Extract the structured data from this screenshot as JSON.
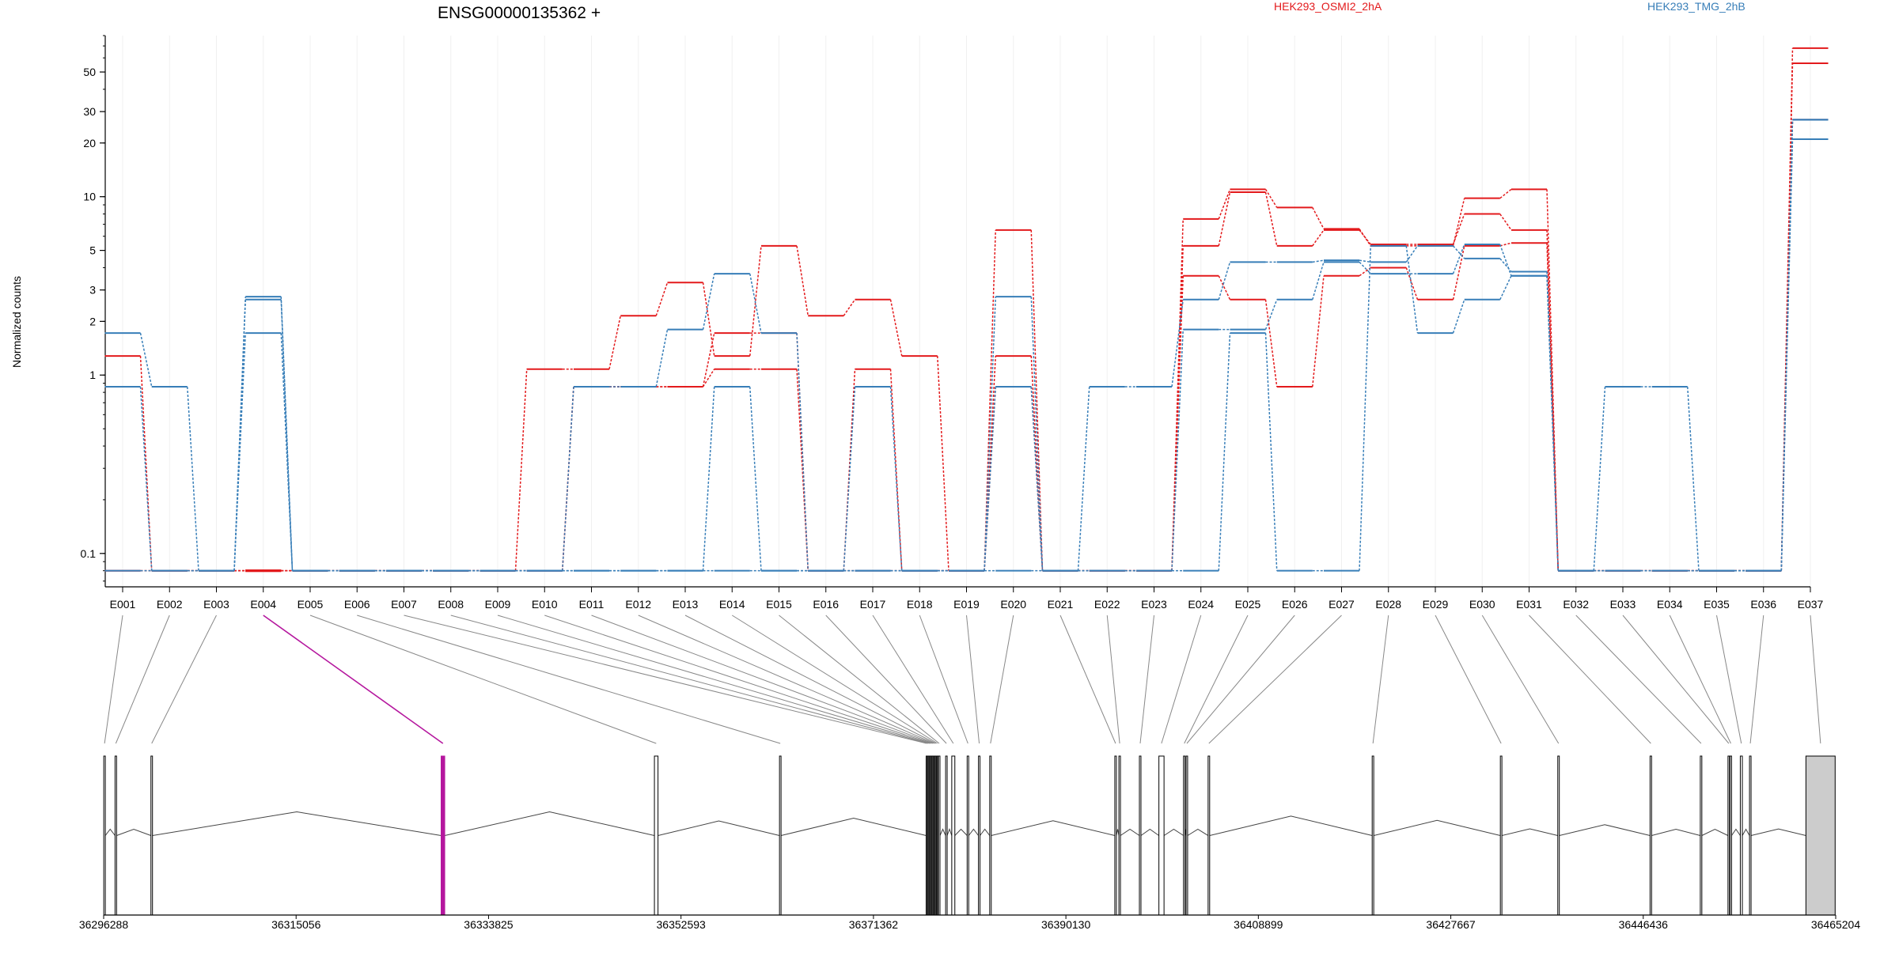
{
  "chart_data": {
    "type": "line",
    "title": "ENSG00000135362 +",
    "ylabel": "Normalized counts",
    "xlabel": "",
    "yscale": "log",
    "ylim": [
      0.065,
      80
    ],
    "yticks": [
      {
        "value": 0.1,
        "label": "0.1"
      },
      {
        "value": 1,
        "label": "1"
      },
      {
        "value": 2,
        "label": "2"
      },
      {
        "value": 3,
        "label": "3"
      },
      {
        "value": 5,
        "label": "5"
      },
      {
        "value": 10,
        "label": "10"
      },
      {
        "value": 20,
        "label": "20"
      },
      {
        "value": 30,
        "label": "30"
      },
      {
        "value": 50,
        "label": "50"
      }
    ],
    "grid": "vertical",
    "legend": [
      {
        "label": "HEK293_OSMI2_2hA",
        "color": "#e31a1c"
      },
      {
        "label": "HEK293_TMG_2hB",
        "color": "#377eb8"
      }
    ],
    "categories": [
      "E001",
      "E002",
      "E003",
      "E004",
      "E005",
      "E006",
      "E007",
      "E008",
      "E009",
      "E010",
      "E011",
      "E012",
      "E013",
      "E014",
      "E015",
      "E016",
      "E017",
      "E018",
      "E019",
      "E020",
      "E021",
      "E022",
      "E023",
      "E024",
      "E025",
      "E026",
      "E027",
      "E028",
      "E029",
      "E030",
      "E031",
      "E032",
      "E033",
      "E034",
      "E035",
      "E036",
      "E037"
    ],
    "highlight_category": "E004",
    "highlight_color": "#b5179e",
    "series": [
      {
        "color": "#e31a1c",
        "values": [
          1.28,
          0.08,
          0.08,
          0.08,
          0.08,
          0.08,
          0.08,
          0.08,
          0.08,
          1.08,
          1.08,
          2.15,
          3.3,
          1.28,
          5.3,
          2.15,
          2.65,
          1.28,
          0.08,
          6.5,
          0.08,
          0.08,
          0.08,
          7.5,
          11.0,
          8.7,
          6.6,
          5.3,
          5.3,
          9.8,
          11.0,
          0.08,
          0.08,
          0.08,
          0.08,
          0.08,
          68
        ]
      },
      {
        "color": "#e31a1c",
        "values": [
          0.08,
          0.08,
          0.08,
          0.08,
          0.08,
          0.08,
          0.08,
          0.08,
          0.08,
          0.08,
          0.86,
          0.86,
          0.86,
          1.72,
          1.72,
          0.08,
          1.08,
          0.08,
          0.08,
          1.28,
          0.08,
          0.08,
          0.08,
          5.3,
          10.6,
          5.3,
          6.5,
          5.4,
          5.4,
          8.0,
          6.5,
          0.08,
          0.08,
          0.08,
          0.08,
          0.08,
          56
        ]
      },
      {
        "color": "#e31a1c",
        "values": [
          0.08,
          0.08,
          0.08,
          0.08,
          0.08,
          0.08,
          0.08,
          0.08,
          0.08,
          0.08,
          0.86,
          0.86,
          0.86,
          1.08,
          1.08,
          0.08,
          0.08,
          0.08,
          0.08,
          0.86,
          0.08,
          0.08,
          0.08,
          3.6,
          2.65,
          0.86,
          3.6,
          4.0,
          2.65,
          5.3,
          5.5,
          0.08,
          0.08,
          0.08,
          0.08,
          0.08,
          27
        ]
      },
      {
        "color": "#377eb8",
        "values": [
          1.72,
          0.86,
          0.08,
          2.75,
          0.08,
          0.08,
          0.08,
          0.08,
          0.08,
          0.08,
          0.86,
          0.86,
          1.8,
          3.7,
          1.72,
          0.08,
          0.86,
          0.08,
          0.08,
          2.75,
          0.08,
          0.86,
          0.86,
          2.65,
          4.3,
          4.3,
          4.4,
          4.3,
          5.3,
          4.5,
          3.8,
          0.08,
          0.86,
          0.86,
          0.08,
          0.08,
          27
        ]
      },
      {
        "color": "#377eb8",
        "values": [
          0.86,
          0.08,
          0.08,
          2.65,
          0.08,
          0.08,
          0.08,
          0.08,
          0.08,
          0.08,
          0.08,
          0.08,
          0.08,
          0.86,
          0.08,
          0.08,
          0.08,
          0.08,
          0.08,
          0.86,
          0.08,
          0.08,
          0.08,
          1.8,
          1.8,
          2.65,
          4.3,
          3.7,
          3.7,
          5.4,
          3.6,
          0.08,
          0.08,
          0.08,
          0.08,
          0.08,
          21
        ]
      },
      {
        "color": "#377eb8",
        "values": [
          0.08,
          0.08,
          0.08,
          1.72,
          0.08,
          0.08,
          0.08,
          0.08,
          0.08,
          0.08,
          0.08,
          0.08,
          0.08,
          0.08,
          0.08,
          0.08,
          0.08,
          0.08,
          0.08,
          0.08,
          0.08,
          0.08,
          0.08,
          0.08,
          1.72,
          0.08,
          0.08,
          5.3,
          1.72,
          2.65,
          3.6,
          0.08,
          0.08,
          0.08,
          0.08,
          0.08,
          27
        ]
      }
    ],
    "gene_model": {
      "coord_ticks": [
        "36296288",
        "36315056",
        "36333825",
        "36352593",
        "36371362",
        "36390130",
        "36408899",
        "36427667",
        "36446436",
        "36465204"
      ],
      "coord_range": [
        36296288,
        36465204
      ],
      "exons": [
        {
          "id": "E001",
          "start": 36296300,
          "end": 36296450
        },
        {
          "id": "E002",
          "start": 36297400,
          "end": 36297550
        },
        {
          "id": "E003",
          "start": 36300900,
          "end": 36301050
        },
        {
          "id": "E004",
          "start": 36329200,
          "end": 36329550
        },
        {
          "id": "E005",
          "start": 36350000,
          "end": 36350350
        },
        {
          "id": "E006",
          "start": 36362200,
          "end": 36362350
        },
        {
          "id": "E007",
          "start": 36376500,
          "end": 36376600
        },
        {
          "id": "E008",
          "start": 36376650,
          "end": 36376750
        },
        {
          "id": "E009",
          "start": 36376800,
          "end": 36376900
        },
        {
          "id": "E010",
          "start": 36376950,
          "end": 36377050
        },
        {
          "id": "E011",
          "start": 36377100,
          "end": 36377200
        },
        {
          "id": "E012",
          "start": 36377250,
          "end": 36377350
        },
        {
          "id": "E013",
          "start": 36377400,
          "end": 36377500
        },
        {
          "id": "E014",
          "start": 36377550,
          "end": 36377650
        },
        {
          "id": "E015",
          "start": 36377700,
          "end": 36377850
        },
        {
          "id": "E016",
          "start": 36378400,
          "end": 36378550
        },
        {
          "id": "E017",
          "start": 36379000,
          "end": 36379300
        },
        {
          "id": "E018",
          "start": 36380500,
          "end": 36380650
        },
        {
          "id": "E019",
          "start": 36381600,
          "end": 36381750
        },
        {
          "id": "E020",
          "start": 36382700,
          "end": 36382850
        },
        {
          "id": "E021",
          "start": 36394900,
          "end": 36395050
        },
        {
          "id": "E022",
          "start": 36395300,
          "end": 36395450
        },
        {
          "id": "E023",
          "start": 36397300,
          "end": 36397450
        },
        {
          "id": "E024",
          "start": 36399200,
          "end": 36399700
        },
        {
          "id": "E025",
          "start": 36401600,
          "end": 36401750
        },
        {
          "id": "E026",
          "start": 36401850,
          "end": 36402000
        },
        {
          "id": "E027",
          "start": 36404000,
          "end": 36404150
        },
        {
          "id": "E028",
          "start": 36420000,
          "end": 36420150
        },
        {
          "id": "E029",
          "start": 36432500,
          "end": 36432650
        },
        {
          "id": "E030",
          "start": 36438100,
          "end": 36438250
        },
        {
          "id": "E031",
          "start": 36447100,
          "end": 36447250
        },
        {
          "id": "E032",
          "start": 36452000,
          "end": 36452150
        },
        {
          "id": "E033",
          "start": 36454700,
          "end": 36454850
        },
        {
          "id": "E034",
          "start": 36454900,
          "end": 36455050
        },
        {
          "id": "E035",
          "start": 36455900,
          "end": 36456100
        },
        {
          "id": "E036",
          "start": 36456800,
          "end": 36456950
        },
        {
          "id": "E037",
          "start": 36462300,
          "end": 36465150
        }
      ]
    }
  }
}
